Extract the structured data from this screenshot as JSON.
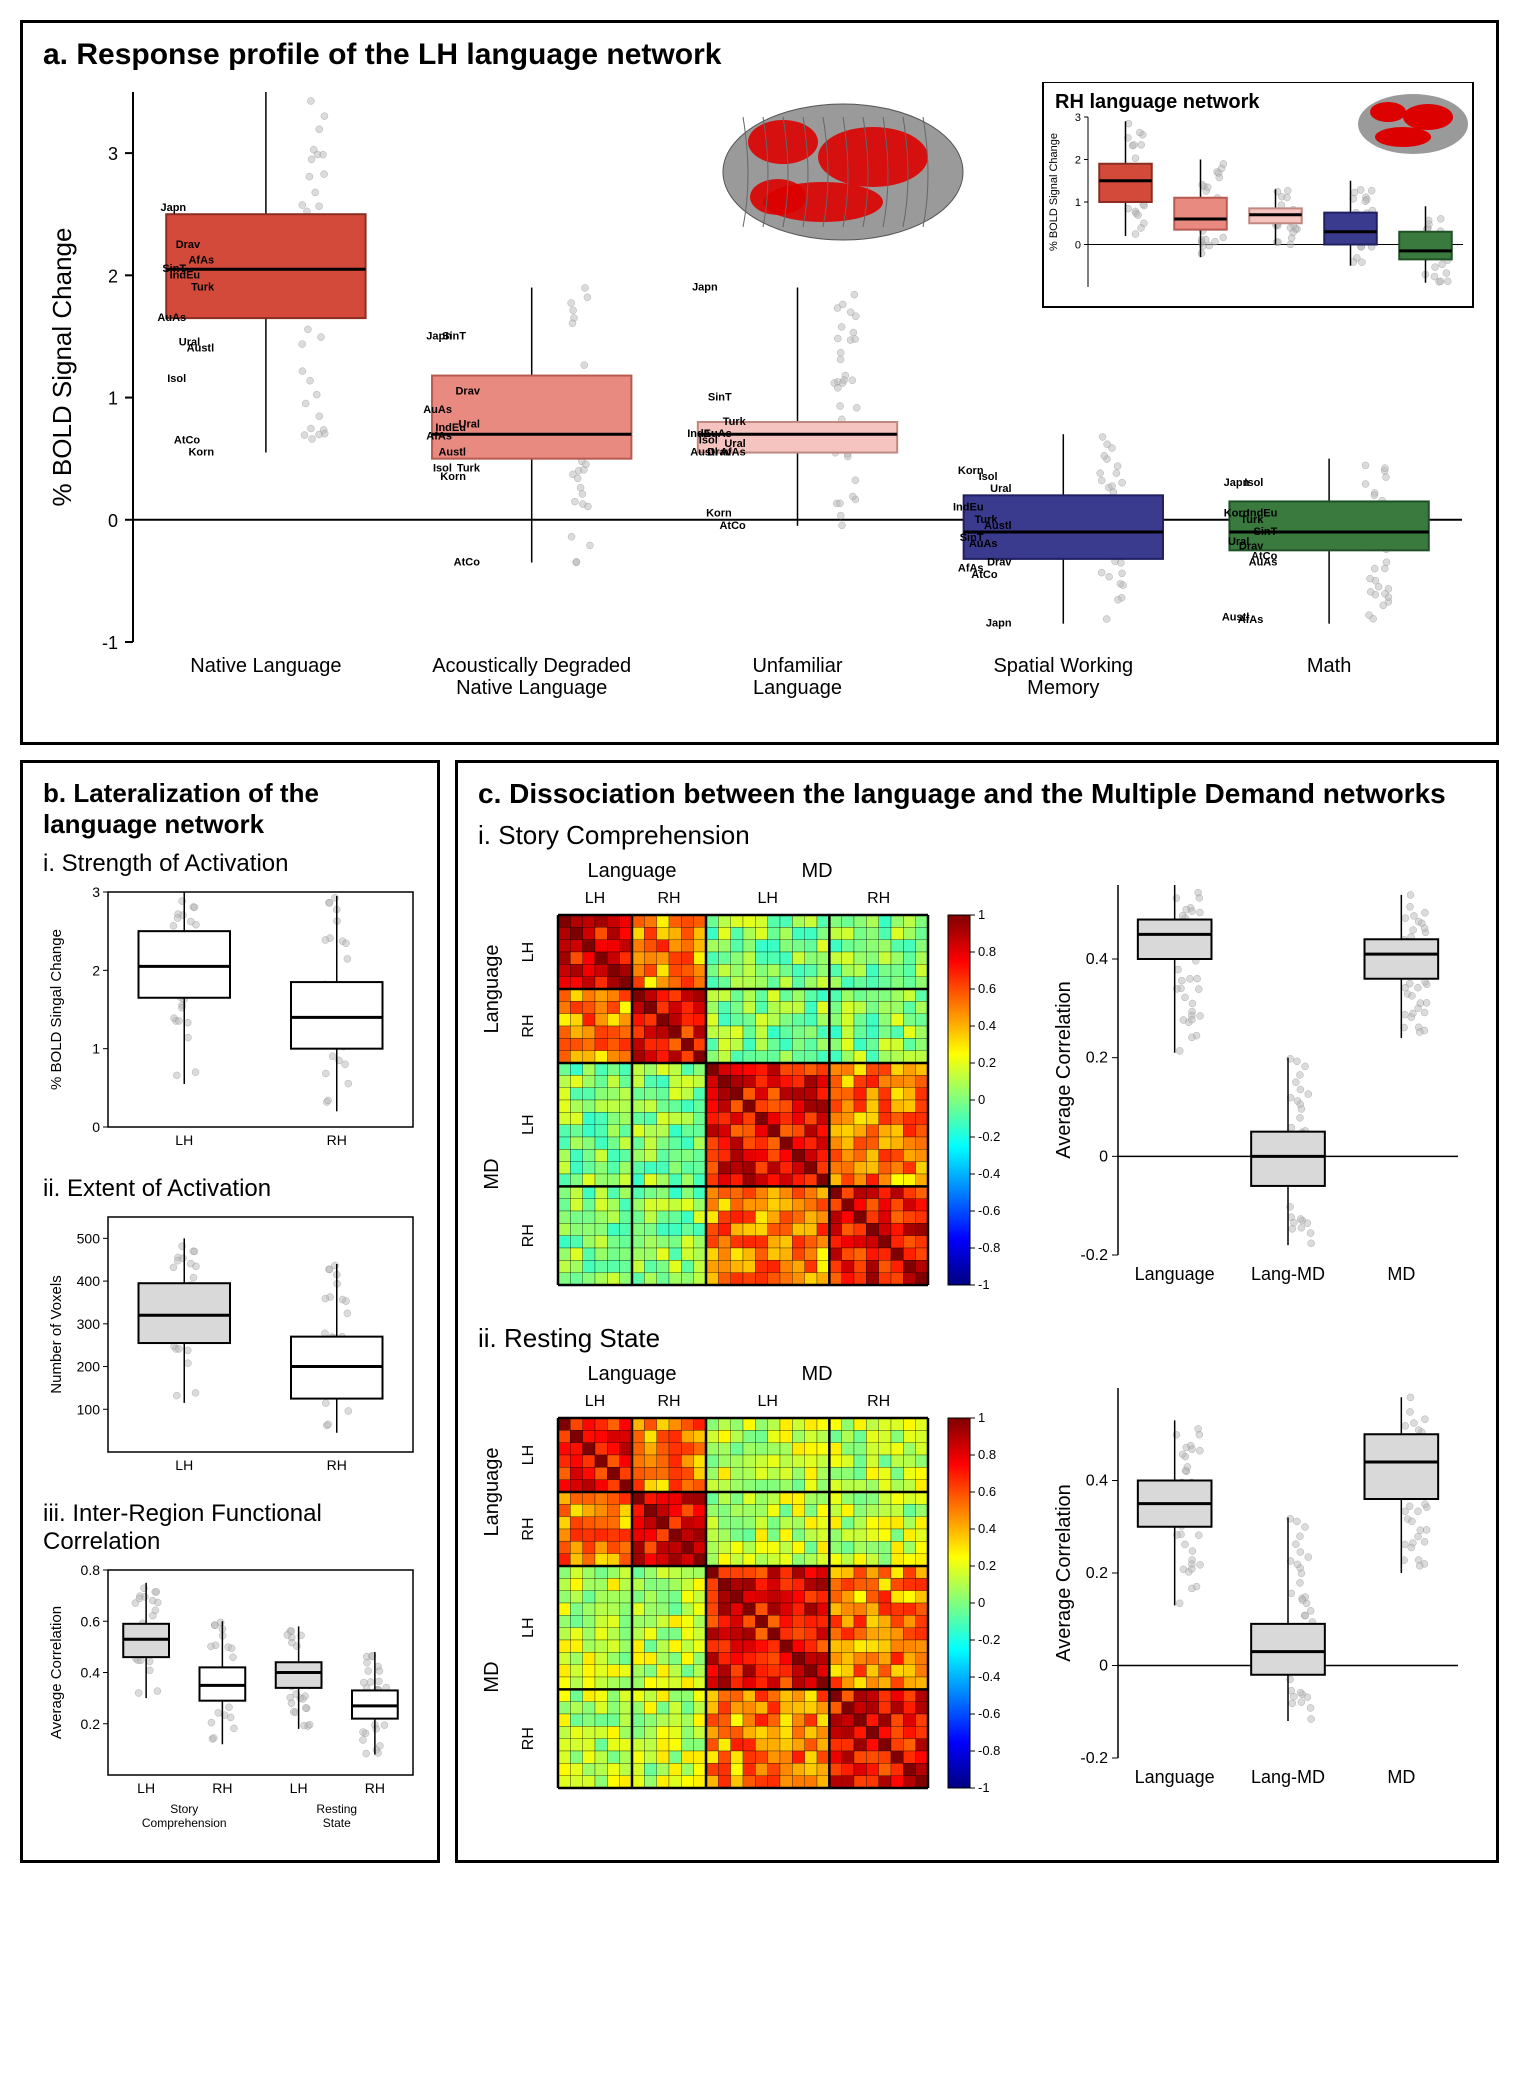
{
  "panel_a": {
    "title": "a. Response profile of the LH language network",
    "inset_title": "RH language network",
    "y_label": "% BOLD Signal Change",
    "y_lim": [
      -1,
      3.5
    ],
    "y_ticks": [
      -1,
      0,
      1,
      2,
      3
    ],
    "categories": [
      {
        "label": "Native Language",
        "lines": [
          "Native Language"
        ],
        "color": "#d34a3a",
        "border": "#8a2e23",
        "median": 2.05,
        "q1": 1.65,
        "q3": 2.5,
        "wmin": 0.55,
        "wmax": 3.5,
        "fam_labels": [
          {
            "t": "Japn",
            "y": 2.55
          },
          {
            "t": "Drav",
            "y": 2.25
          },
          {
            "t": "AfAs",
            "y": 2.12
          },
          {
            "t": "SinT",
            "y": 2.05
          },
          {
            "t": "IndEu",
            "y": 2.0
          },
          {
            "t": "Turk",
            "y": 1.9
          },
          {
            "t": "AuAs",
            "y": 1.65
          },
          {
            "t": "Ural",
            "y": 1.45
          },
          {
            "t": "Austl",
            "y": 1.4
          },
          {
            "t": "Isol",
            "y": 1.15
          },
          {
            "t": "AtCo",
            "y": 0.65
          },
          {
            "t": "Korn",
            "y": 0.55
          }
        ]
      },
      {
        "label": "Acoustically Degraded Native Language",
        "lines": [
          "Acoustically Degraded",
          "Native Language"
        ],
        "color": "#e88a80",
        "border": "#b85a50",
        "median": 0.7,
        "q1": 0.5,
        "q3": 1.18,
        "wmin": -0.35,
        "wmax": 1.9,
        "fam_labels": [
          {
            "t": "Japn",
            "y": 1.5
          },
          {
            "t": "SinT",
            "y": 1.5
          },
          {
            "t": "Drav",
            "y": 1.05
          },
          {
            "t": "AuAs",
            "y": 0.9
          },
          {
            "t": "IndEu",
            "y": 0.75
          },
          {
            "t": "Ural",
            "y": 0.78
          },
          {
            "t": "AfAs",
            "y": 0.68
          },
          {
            "t": "Austl",
            "y": 0.55
          },
          {
            "t": "Turk",
            "y": 0.42
          },
          {
            "t": "Isol",
            "y": 0.42
          },
          {
            "t": "Korn",
            "y": 0.35
          },
          {
            "t": "AtCo",
            "y": -0.35
          }
        ]
      },
      {
        "label": "Unfamiliar Language",
        "lines": [
          "Unfamiliar",
          "Language"
        ],
        "color": "#f5c4c0",
        "border": "#c08880",
        "median": 0.7,
        "q1": 0.55,
        "q3": 0.8,
        "wmin": -0.05,
        "wmax": 1.9,
        "fam_labels": [
          {
            "t": "Japn",
            "y": 1.9
          },
          {
            "t": "SinT",
            "y": 1.0
          },
          {
            "t": "Turk",
            "y": 0.8
          },
          {
            "t": "IndEu",
            "y": 0.7
          },
          {
            "t": "AuAs",
            "y": 0.7
          },
          {
            "t": "Ural",
            "y": 0.62
          },
          {
            "t": "Isol",
            "y": 0.65
          },
          {
            "t": "Drav",
            "y": 0.55
          },
          {
            "t": "AfAs",
            "y": 0.55
          },
          {
            "t": "Austl",
            "y": 0.55
          },
          {
            "t": "Korn",
            "y": 0.05
          },
          {
            "t": "AtCo",
            "y": -0.05
          }
        ]
      },
      {
        "label": "Spatial Working Memory",
        "lines": [
          "Spatial Working",
          "Memory"
        ],
        "color": "#3a3a8f",
        "border": "#202060",
        "median": -0.1,
        "q1": -0.32,
        "q3": 0.2,
        "wmin": -0.85,
        "wmax": 0.7,
        "fam_labels": [
          {
            "t": "Korn",
            "y": 0.4
          },
          {
            "t": "Isol",
            "y": 0.35
          },
          {
            "t": "Ural",
            "y": 0.25
          },
          {
            "t": "IndEu",
            "y": 0.1
          },
          {
            "t": "Turk",
            "y": 0.0
          },
          {
            "t": "Austl",
            "y": -0.05
          },
          {
            "t": "SinT",
            "y": -0.15
          },
          {
            "t": "AuAs",
            "y": -0.2
          },
          {
            "t": "Drav",
            "y": -0.35
          },
          {
            "t": "AfAs",
            "y": -0.4
          },
          {
            "t": "AtCo",
            "y": -0.45
          },
          {
            "t": "Japn",
            "y": -0.85
          }
        ]
      },
      {
        "label": "Math",
        "lines": [
          "Math"
        ],
        "color": "#3a7a3f",
        "border": "#205025",
        "median": -0.1,
        "q1": -0.25,
        "q3": 0.15,
        "wmin": -0.85,
        "wmax": 0.5,
        "fam_labels": [
          {
            "t": "Japn",
            "y": 0.3
          },
          {
            "t": "Isol",
            "y": 0.3
          },
          {
            "t": "IndEu",
            "y": 0.05
          },
          {
            "t": "Korn",
            "y": 0.05
          },
          {
            "t": "Turk",
            "y": 0.0
          },
          {
            "t": "SinT",
            "y": -0.1
          },
          {
            "t": "Ural",
            "y": -0.18
          },
          {
            "t": "Drav",
            "y": -0.22
          },
          {
            "t": "AuAs",
            "y": -0.35
          },
          {
            "t": "Austl",
            "y": -0.8
          },
          {
            "t": "AfAs",
            "y": -0.82
          },
          {
            "t": "AtCo",
            "y": -0.3
          }
        ]
      }
    ],
    "inset": {
      "y_label": "% BOLD Signal Change",
      "y_lim": [
        -1,
        3
      ],
      "y_ticks": [
        0,
        1,
        2,
        3
      ],
      "boxes": [
        {
          "color": "#d34a3a",
          "border": "#8a2e23",
          "median": 1.5,
          "q1": 1.0,
          "q3": 1.9,
          "wmin": 0.2,
          "wmax": 2.9
        },
        {
          "color": "#e88a80",
          "border": "#b85a50",
          "median": 0.6,
          "q1": 0.35,
          "q3": 1.1,
          "wmin": -0.3,
          "wmax": 2.0
        },
        {
          "color": "#f5c4c0",
          "border": "#c08880",
          "median": 0.7,
          "q1": 0.5,
          "q3": 0.85,
          "wmin": 0.0,
          "wmax": 1.3
        },
        {
          "color": "#3a3a8f",
          "border": "#202060",
          "median": 0.3,
          "q1": 0.0,
          "q3": 0.75,
          "wmin": -0.5,
          "wmax": 1.5
        },
        {
          "color": "#3a7a3f",
          "border": "#205025",
          "median": -0.15,
          "q1": -0.35,
          "q3": 0.3,
          "wmin": -0.9,
          "wmax": 0.9
        }
      ]
    }
  },
  "panel_b": {
    "title": "b. Lateralization of the language network",
    "plots": [
      {
        "sub": "i. Strength of Activation",
        "y_label": "% BOLD Singal Change",
        "y_lim": [
          0,
          3
        ],
        "y_ticks": [
          0,
          1,
          2,
          3
        ],
        "cats": [
          "LH",
          "RH"
        ],
        "boxes": [
          {
            "median": 2.05,
            "q1": 1.65,
            "q3": 2.5,
            "wmin": 0.55,
            "wmax": 3.0,
            "color": "#ffffff"
          },
          {
            "median": 1.4,
            "q1": 1.0,
            "q3": 1.85,
            "wmin": 0.2,
            "wmax": 2.95,
            "color": "#ffffff"
          }
        ]
      },
      {
        "sub": "ii. Extent of Activation",
        "y_label": "Number of Voxels",
        "y_lim": [
          0,
          550
        ],
        "y_ticks": [
          100,
          200,
          300,
          400,
          500
        ],
        "cats": [
          "LH",
          "RH"
        ],
        "boxes": [
          {
            "median": 320,
            "q1": 255,
            "q3": 395,
            "wmin": 115,
            "wmax": 500,
            "color": "#d9d9d9"
          },
          {
            "median": 200,
            "q1": 125,
            "q3": 270,
            "wmin": 45,
            "wmax": 440,
            "color": "#ffffff"
          }
        ]
      },
      {
        "sub": "iii. Inter-Region Functional Correlation",
        "y_label": "Average Correlation",
        "y_lim": [
          0,
          0.8
        ],
        "y_ticks": [
          0.2,
          0.4,
          0.6,
          0.8
        ],
        "cats": [
          "LH",
          "RH",
          "LH",
          "RH"
        ],
        "group_labels": [
          "Story\nComprehension",
          "Resting\nState"
        ],
        "boxes": [
          {
            "median": 0.53,
            "q1": 0.46,
            "q3": 0.59,
            "wmin": 0.3,
            "wmax": 0.75,
            "color": "#d9d9d9"
          },
          {
            "median": 0.35,
            "q1": 0.29,
            "q3": 0.42,
            "wmin": 0.12,
            "wmax": 0.6,
            "color": "#ffffff"
          },
          {
            "median": 0.4,
            "q1": 0.34,
            "q3": 0.44,
            "wmin": 0.18,
            "wmax": 0.58,
            "color": "#d9d9d9"
          },
          {
            "median": 0.27,
            "q1": 0.22,
            "q3": 0.33,
            "wmin": 0.08,
            "wmax": 0.48,
            "color": "#ffffff"
          }
        ]
      }
    ]
  },
  "panel_c": {
    "title": "c. Dissociation between the language and the Multiple Demand networks",
    "sections": [
      {
        "sub": "i. Story Comprehension",
        "matrix_labels": {
          "top": [
            "Language",
            "MD"
          ],
          "top_sub": [
            "LH",
            "RH",
            "LH",
            "RH"
          ],
          "left": [
            "Language",
            "MD"
          ],
          "left_sub": [
            "LH",
            "RH",
            "LH",
            "RH"
          ]
        },
        "box": {
          "y_label": "Average Correlation",
          "y_lim": [
            -0.2,
            0.55
          ],
          "y_ticks": [
            -0.2,
            0,
            0.2,
            0.4
          ],
          "cats": [
            "Language",
            "Lang-MD",
            "MD"
          ],
          "boxes": [
            {
              "median": 0.45,
              "q1": 0.4,
              "q3": 0.48,
              "wmin": 0.21,
              "wmax": 0.55,
              "color": "#d9d9d9"
            },
            {
              "median": 0.0,
              "q1": -0.06,
              "q3": 0.05,
              "wmin": -0.18,
              "wmax": 0.2,
              "color": "#d9d9d9"
            },
            {
              "median": 0.41,
              "q1": 0.36,
              "q3": 0.44,
              "wmin": 0.24,
              "wmax": 0.53,
              "color": "#d9d9d9"
            }
          ]
        }
      },
      {
        "sub": "ii. Resting State",
        "matrix_labels": {
          "top": [
            "Language",
            "MD"
          ],
          "top_sub": [
            "LH",
            "RH",
            "LH",
            "RH"
          ],
          "left": [
            "Language",
            "MD"
          ],
          "left_sub": [
            "LH",
            "RH",
            "LH",
            "RH"
          ]
        },
        "box": {
          "y_label": "Average Correlation",
          "y_lim": [
            -0.2,
            0.6
          ],
          "y_ticks": [
            -0.2,
            0,
            0.2,
            0.4
          ],
          "cats": [
            "Language",
            "Lang-MD",
            "MD"
          ],
          "boxes": [
            {
              "median": 0.35,
              "q1": 0.3,
              "q3": 0.4,
              "wmin": 0.13,
              "wmax": 0.53,
              "color": "#d9d9d9"
            },
            {
              "median": 0.03,
              "q1": -0.02,
              "q3": 0.09,
              "wmin": -0.12,
              "wmax": 0.32,
              "color": "#d9d9d9"
            },
            {
              "median": 0.44,
              "q1": 0.36,
              "q3": 0.5,
              "wmin": 0.2,
              "wmax": 0.58,
              "color": "#d9d9d9"
            }
          ]
        }
      }
    ],
    "colorbar": {
      "min": -1,
      "max": 1,
      "ticks": [
        -1,
        -0.8,
        -0.6,
        -0.4,
        -0.2,
        0,
        0.2,
        0.4,
        0.6,
        0.8,
        1
      ]
    },
    "matrix_grid": 30,
    "matrix_breaks": [
      6,
      12,
      22
    ]
  },
  "colors": {
    "grid": "#cccccc",
    "axis": "#000000",
    "scatter": "#b8b8b8",
    "jet_stops": [
      [
        0,
        "#00007f"
      ],
      [
        0.125,
        "#0000ff"
      ],
      [
        0.375,
        "#00ffff"
      ],
      [
        0.625,
        "#ffff00"
      ],
      [
        0.875,
        "#ff0000"
      ],
      [
        1,
        "#7f0000"
      ]
    ]
  }
}
